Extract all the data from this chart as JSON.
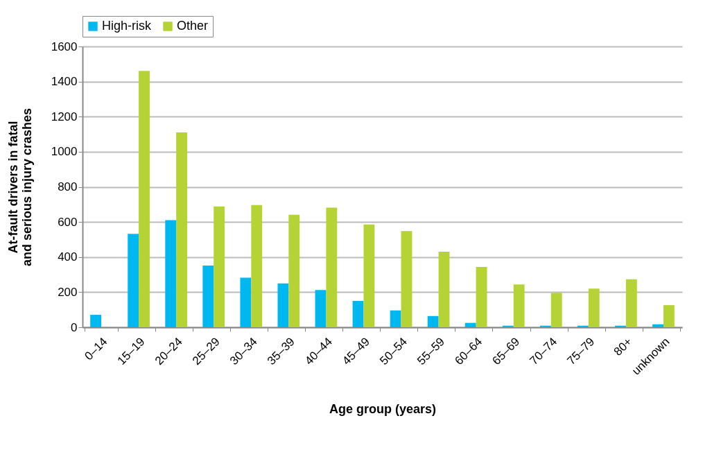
{
  "chart_data": {
    "type": "bar",
    "xlabel": "Age group (years)",
    "ylabel": "At-fault drivers in fatal and serious injury crashes",
    "categories": [
      "0–14",
      "15–19",
      "20–24",
      "25–29",
      "30–34",
      "35–39",
      "40–44",
      "45–49",
      "50–54",
      "55–59",
      "60–64",
      "65–69",
      "70–74",
      "75–79",
      "80+",
      "unknown"
    ],
    "series": [
      {
        "name": "High-risk",
        "color": "#00b8f0",
        "values": [
          71,
          532,
          610,
          352,
          282,
          250,
          212,
          150,
          96,
          64,
          25,
          9,
          9,
          9,
          9,
          17
        ]
      },
      {
        "name": "Other",
        "color": "#b5d334",
        "values": [
          0,
          1461,
          1110,
          688,
          696,
          641,
          681,
          586,
          548,
          431,
          344,
          244,
          196,
          220,
          274,
          126
        ]
      }
    ],
    "ylim": [
      0,
      1600
    ],
    "yticks": [
      0,
      200,
      400,
      600,
      800,
      1000,
      1200,
      1400,
      1600
    ],
    "grid": "y",
    "legend": "top"
  }
}
